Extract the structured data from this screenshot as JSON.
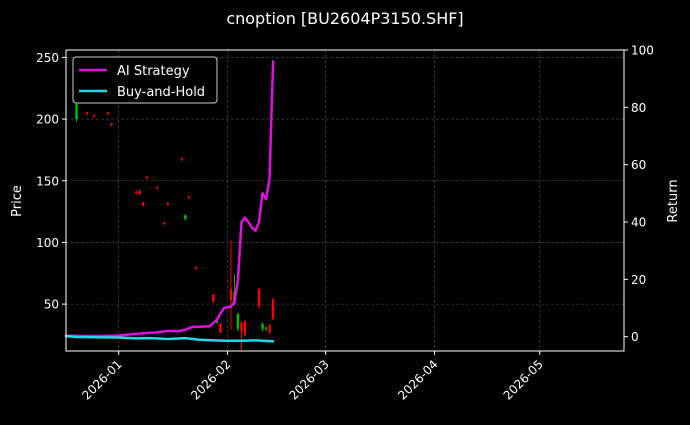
{
  "chart_data": {
    "type": "line",
    "title": "cnoption [BU2604P3150.SHF]",
    "xlabel": "",
    "ylabel": "Price",
    "y2label": "Return",
    "x_ticks": [
      "2026-01",
      "2026-02",
      "2026-03",
      "2026-04",
      "2026-05"
    ],
    "xlim": [
      "2025-12-17",
      "2026-05-25"
    ],
    "ylim": [
      12,
      256
    ],
    "y_ticks": [
      50,
      100,
      150,
      200,
      250
    ],
    "y2lim": [
      -5,
      100
    ],
    "y2_ticks": [
      0,
      20,
      40,
      60,
      80,
      100
    ],
    "grid": true,
    "legend_position": "top-left",
    "candles": [
      {
        "date": "2025-12-20",
        "open": 200,
        "close": 212,
        "high": 213,
        "low": 198,
        "color": "#00c000"
      },
      {
        "date": "2025-12-23",
        "open": 205,
        "close": 204,
        "high": 206,
        "low": 203,
        "color": "#ff0000"
      },
      {
        "date": "2025-12-25",
        "open": 203,
        "close": 202,
        "high": 204,
        "low": 201,
        "color": "#ff0000"
      },
      {
        "date": "2025-12-29",
        "open": 205,
        "close": 204,
        "high": 206,
        "low": 203,
        "color": "#ff0000"
      },
      {
        "date": "2025-12-30",
        "open": 196,
        "close": 195,
        "high": 197,
        "low": 194,
        "color": "#ff0000"
      },
      {
        "date": "2026-01-06",
        "open": 141,
        "close": 140,
        "high": 142,
        "low": 139,
        "color": "#ff0000"
      },
      {
        "date": "2026-01-07",
        "open": 142,
        "close": 139,
        "high": 143,
        "low": 138,
        "color": "#ff0000"
      },
      {
        "date": "2026-01-08",
        "open": 132,
        "close": 130,
        "high": 133,
        "low": 129,
        "color": "#ff0000"
      },
      {
        "date": "2026-01-09",
        "open": 153,
        "close": 152,
        "high": 154,
        "low": 151,
        "color": "#ff0000"
      },
      {
        "date": "2026-01-12",
        "open": 145,
        "close": 144,
        "high": 146,
        "low": 143,
        "color": "#ff0000"
      },
      {
        "date": "2026-01-14",
        "open": 116,
        "close": 115,
        "high": 117,
        "low": 114,
        "color": "#ff0000"
      },
      {
        "date": "2026-01-15",
        "open": 132,
        "close": 131,
        "high": 133,
        "low": 130,
        "color": "#ff0000"
      },
      {
        "date": "2026-01-19",
        "open": 168,
        "close": 167,
        "high": 169,
        "low": 166,
        "color": "#ff0000"
      },
      {
        "date": "2026-01-20",
        "open": 119,
        "close": 122,
        "high": 123,
        "low": 118,
        "color": "#00c000"
      },
      {
        "date": "2026-01-21",
        "open": 137,
        "close": 136,
        "high": 138,
        "low": 135,
        "color": "#ff0000"
      },
      {
        "date": "2026-01-23",
        "open": 80,
        "close": 79,
        "high": 81,
        "low": 78,
        "color": "#ff0000"
      },
      {
        "date": "2026-01-28",
        "open": 58,
        "close": 52,
        "high": 58,
        "low": 51,
        "color": "#ff0000"
      },
      {
        "date": "2026-01-29",
        "open": 35,
        "close": 37,
        "high": 38,
        "low": 34,
        "color": "#00c000"
      },
      {
        "date": "2026-01-30",
        "open": 34,
        "close": 27,
        "high": 35,
        "low": 26,
        "color": "#ff0000"
      },
      {
        "date": "2026-02-02",
        "open": 62,
        "close": 53,
        "high": 102,
        "low": 29,
        "color": "#ff0000"
      },
      {
        "date": "2026-02-03",
        "open": 50,
        "close": 60,
        "high": 74,
        "low": 49,
        "color": "#00c000"
      },
      {
        "date": "2026-02-04",
        "open": 30,
        "close": 42,
        "high": 43,
        "low": 28,
        "color": "#00c000"
      },
      {
        "date": "2026-02-05",
        "open": 35,
        "close": 28,
        "high": 36,
        "low": 12,
        "color": "#ff0000"
      },
      {
        "date": "2026-02-06",
        "open": 36,
        "close": 25,
        "high": 37,
        "low": 24,
        "color": "#ff0000"
      },
      {
        "date": "2026-02-10",
        "open": 62,
        "close": 48,
        "high": 63,
        "low": 47,
        "color": "#ff0000"
      },
      {
        "date": "2026-02-11",
        "open": 30,
        "close": 34,
        "high": 35,
        "low": 28,
        "color": "#00c000"
      },
      {
        "date": "2026-02-12",
        "open": 31,
        "close": 30,
        "high": 32,
        "low": 28,
        "color": "#00c000"
      },
      {
        "date": "2026-02-13",
        "open": 33,
        "close": 27,
        "high": 34,
        "low": 26,
        "color": "#ff0000"
      },
      {
        "date": "2026-02-14",
        "open": 54,
        "close": 38,
        "high": 55,
        "low": 37,
        "color": "#ff0000"
      }
    ],
    "series": [
      {
        "name": "AI Strategy",
        "color": "#e010e0",
        "axis": "right",
        "x": [
          "2025-12-17",
          "2025-12-25",
          "2026-01-01",
          "2026-01-05",
          "2026-01-08",
          "2026-01-12",
          "2026-01-15",
          "2026-01-18",
          "2026-01-20",
          "2026-01-22",
          "2026-01-25",
          "2026-01-27",
          "2026-01-29",
          "2026-01-31",
          "2026-02-02",
          "2026-02-03",
          "2026-02-04",
          "2026-02-05",
          "2026-02-06",
          "2026-02-07",
          "2026-02-08",
          "2026-02-09",
          "2026-02-10",
          "2026-02-11",
          "2026-02-12",
          "2026-02-13",
          "2026-02-14"
        ],
        "values": [
          0.3,
          0.2,
          0.4,
          0.9,
          1.2,
          1.5,
          2.0,
          1.9,
          2.4,
          3.4,
          3.5,
          3.6,
          6.0,
          10.0,
          10.5,
          12.0,
          20.0,
          40.0,
          41.5,
          40.0,
          38.0,
          37.0,
          40.0,
          50.0,
          48.0,
          55.0,
          96.0
        ]
      },
      {
        "name": "Buy-and-Hold",
        "color": "#22d8e8",
        "axis": "right",
        "x": [
          "2025-12-17",
          "2025-12-20",
          "2025-12-25",
          "2026-01-01",
          "2026-01-06",
          "2026-01-10",
          "2026-01-15",
          "2026-01-20",
          "2026-01-24",
          "2026-01-28",
          "2026-02-01",
          "2026-02-05",
          "2026-02-09",
          "2026-02-14"
        ],
        "values": [
          0.2,
          -0.1,
          -0.2,
          -0.3,
          -0.6,
          -0.5,
          -0.8,
          -0.5,
          -1.1,
          -1.3,
          -1.4,
          -1.4,
          -1.3,
          -1.6
        ]
      }
    ]
  }
}
